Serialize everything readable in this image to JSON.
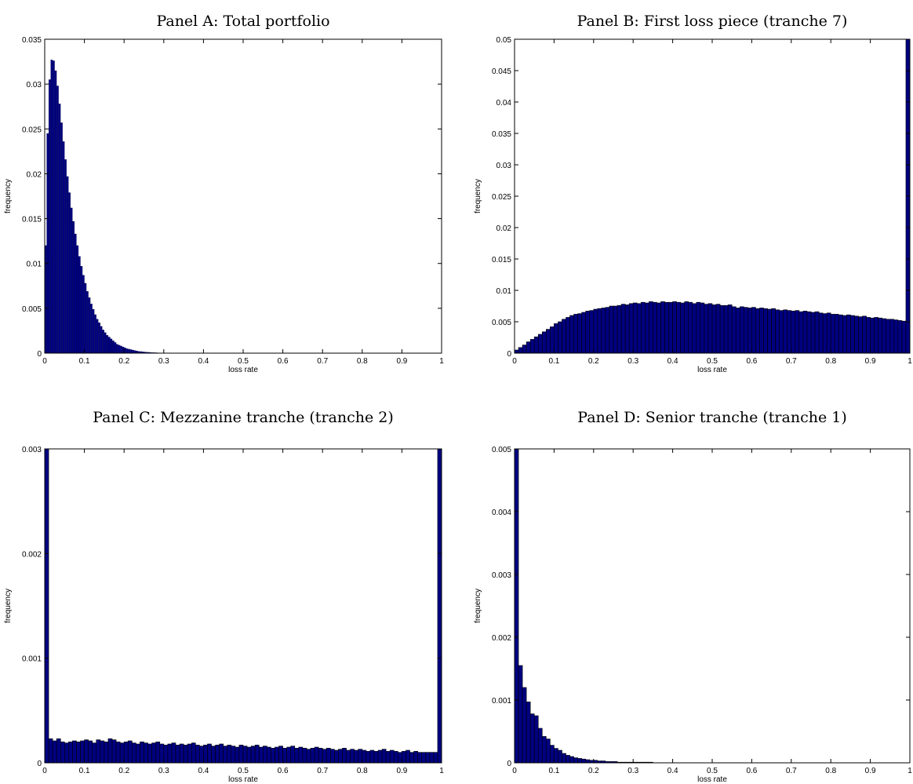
{
  "colors": {
    "bar_fill": "#000080",
    "bar_edge": "#000000",
    "axes": "#000000",
    "background": "#ffffff"
  },
  "chart_data": [
    {
      "id": "A",
      "type": "bar",
      "title": "Panel A: Total portfolio",
      "xlabel": "loss rate",
      "ylabel": "frequency",
      "xlim": [
        0,
        1
      ],
      "ylim": [
        0,
        0.035
      ],
      "xticks": [
        "0",
        "0.1",
        "0.2",
        "0.3",
        "0.4",
        "0.5",
        "0.6",
        "0.7",
        "0.8",
        "0.9",
        "1"
      ],
      "yticks": [
        "0",
        "0.005",
        "0.01",
        "0.015",
        "0.02",
        "0.025",
        "0.03",
        "0.035"
      ],
      "bar_width": 0.005,
      "x": [
        0.0025,
        0.0075,
        0.0125,
        0.0175,
        0.0225,
        0.0275,
        0.0325,
        0.0375,
        0.0425,
        0.0475,
        0.0525,
        0.0575,
        0.0625,
        0.0675,
        0.0725,
        0.0775,
        0.0825,
        0.0875,
        0.0925,
        0.0975,
        0.1025,
        0.1075,
        0.1125,
        0.1175,
        0.1225,
        0.1275,
        0.1325,
        0.1375,
        0.1425,
        0.1475,
        0.1525,
        0.1575,
        0.1625,
        0.1675,
        0.1725,
        0.1775,
        0.1825,
        0.1875,
        0.1925,
        0.1975,
        0.2025,
        0.2075,
        0.2125,
        0.2175,
        0.2225,
        0.2275,
        0.2325,
        0.2375,
        0.2425,
        0.2475,
        0.2525,
        0.2575,
        0.2625,
        0.2675,
        0.2725,
        0.2775,
        0.2825,
        0.2875,
        0.2925,
        0.2975,
        0.3025,
        0.3075,
        0.3125
      ],
      "values": [
        0.012,
        0.0245,
        0.0305,
        0.0327,
        0.0326,
        0.0315,
        0.0298,
        0.0278,
        0.0257,
        0.0236,
        0.0216,
        0.0197,
        0.0179,
        0.0162,
        0.0147,
        0.0133,
        0.012,
        0.0108,
        0.0097,
        0.0087,
        0.0078,
        0.0069,
        0.0062,
        0.0055,
        0.0049,
        0.0043,
        0.0038,
        0.0034,
        0.003,
        0.0026,
        0.0023,
        0.002,
        0.0018,
        0.0016,
        0.0014,
        0.0012,
        0.001,
        0.0009,
        0.0008,
        0.0007,
        0.0006,
        0.0005,
        0.00045,
        0.0004,
        0.00035,
        0.0003,
        0.00025,
        0.0002,
        0.00018,
        0.00015,
        0.00013,
        0.00011,
        0.0001,
        8e-05,
        7e-05,
        6e-05,
        5e-05,
        4e-05,
        3e-05,
        3e-05,
        2e-05,
        2e-05,
        1e-05
      ]
    },
    {
      "id": "B",
      "type": "bar",
      "title": "Panel B: First loss piece (tranche 7)",
      "xlabel": "loss rate",
      "ylabel": "frequency",
      "xlim": [
        0,
        1
      ],
      "ylim": [
        0,
        0.05
      ],
      "xticks": [
        "0",
        "0.1",
        "0.2",
        "0.3",
        "0.4",
        "0.5",
        "0.6",
        "0.7",
        "0.8",
        "0.9",
        "1"
      ],
      "yticks": [
        "0",
        "0.005",
        "0.01",
        "0.015",
        "0.02",
        "0.025",
        "0.03",
        "0.035",
        "0.04",
        "0.045",
        "0.05"
      ],
      "bar_width": 0.01,
      "x": [
        0.005,
        0.015,
        0.025,
        0.035,
        0.045,
        0.055,
        0.065,
        0.075,
        0.085,
        0.095,
        0.105,
        0.115,
        0.125,
        0.135,
        0.145,
        0.155,
        0.165,
        0.175,
        0.185,
        0.195,
        0.205,
        0.215,
        0.225,
        0.235,
        0.245,
        0.255,
        0.265,
        0.275,
        0.285,
        0.295,
        0.305,
        0.315,
        0.325,
        0.335,
        0.345,
        0.355,
        0.365,
        0.375,
        0.385,
        0.395,
        0.405,
        0.415,
        0.425,
        0.435,
        0.445,
        0.455,
        0.465,
        0.475,
        0.485,
        0.495,
        0.505,
        0.515,
        0.525,
        0.535,
        0.545,
        0.555,
        0.565,
        0.575,
        0.585,
        0.595,
        0.605,
        0.615,
        0.625,
        0.635,
        0.645,
        0.655,
        0.665,
        0.675,
        0.685,
        0.695,
        0.705,
        0.715,
        0.725,
        0.735,
        0.745,
        0.755,
        0.765,
        0.775,
        0.785,
        0.795,
        0.805,
        0.815,
        0.825,
        0.835,
        0.845,
        0.855,
        0.865,
        0.875,
        0.885,
        0.895,
        0.905,
        0.915,
        0.925,
        0.935,
        0.945,
        0.955,
        0.965,
        0.975,
        0.985,
        0.995
      ],
      "values": [
        0.0005,
        0.0009,
        0.0013,
        0.0018,
        0.0022,
        0.0026,
        0.003,
        0.0034,
        0.0038,
        0.0042,
        0.0047,
        0.005,
        0.0054,
        0.0057,
        0.006,
        0.0062,
        0.0063,
        0.0065,
        0.0067,
        0.0068,
        0.007,
        0.0071,
        0.0072,
        0.0073,
        0.0075,
        0.0075,
        0.0076,
        0.0078,
        0.0077,
        0.0079,
        0.008,
        0.0079,
        0.0081,
        0.008,
        0.0082,
        0.0081,
        0.008,
        0.0082,
        0.0081,
        0.0081,
        0.0082,
        0.0081,
        0.008,
        0.0082,
        0.0081,
        0.0079,
        0.0081,
        0.008,
        0.0078,
        0.0079,
        0.0077,
        0.0078,
        0.0076,
        0.0076,
        0.0077,
        0.0074,
        0.0072,
        0.0074,
        0.0073,
        0.0072,
        0.0073,
        0.0071,
        0.0072,
        0.0071,
        0.007,
        0.0071,
        0.0069,
        0.0068,
        0.0069,
        0.0068,
        0.0067,
        0.0068,
        0.0066,
        0.0067,
        0.0066,
        0.0065,
        0.0066,
        0.0064,
        0.0063,
        0.0064,
        0.0062,
        0.0062,
        0.0061,
        0.006,
        0.0061,
        0.006,
        0.0059,
        0.0058,
        0.0059,
        0.0057,
        0.0056,
        0.0057,
        0.0056,
        0.0055,
        0.0054,
        0.0054,
        0.0053,
        0.0052,
        0.0051,
        0.05
      ]
    },
    {
      "id": "C",
      "type": "bar",
      "title": "Panel C: Mezzanine tranche (tranche 2)",
      "xlabel": "loss rate",
      "ylabel": "frequency",
      "xlim": [
        0,
        1
      ],
      "ylim": [
        0,
        0.003
      ],
      "xticks": [
        "0",
        "0.1",
        "0.2",
        "0.3",
        "0.4",
        "0.5",
        "0.6",
        "0.7",
        "0.8",
        "0.9",
        "1"
      ],
      "yticks": [
        "0",
        "0.001",
        "0.002",
        "0.003"
      ],
      "bar_width": 0.01,
      "x": [
        0.005,
        0.015,
        0.025,
        0.035,
        0.045,
        0.055,
        0.065,
        0.075,
        0.085,
        0.095,
        0.105,
        0.115,
        0.125,
        0.135,
        0.145,
        0.155,
        0.165,
        0.175,
        0.185,
        0.195,
        0.205,
        0.215,
        0.225,
        0.235,
        0.245,
        0.255,
        0.265,
        0.275,
        0.285,
        0.295,
        0.305,
        0.315,
        0.325,
        0.335,
        0.345,
        0.355,
        0.365,
        0.375,
        0.385,
        0.395,
        0.405,
        0.415,
        0.425,
        0.435,
        0.445,
        0.455,
        0.465,
        0.475,
        0.485,
        0.495,
        0.505,
        0.515,
        0.525,
        0.535,
        0.545,
        0.555,
        0.565,
        0.575,
        0.585,
        0.595,
        0.605,
        0.615,
        0.625,
        0.635,
        0.645,
        0.655,
        0.665,
        0.675,
        0.685,
        0.695,
        0.705,
        0.715,
        0.725,
        0.735,
        0.745,
        0.755,
        0.765,
        0.775,
        0.785,
        0.795,
        0.805,
        0.815,
        0.825,
        0.835,
        0.845,
        0.855,
        0.865,
        0.875,
        0.885,
        0.895,
        0.905,
        0.915,
        0.925,
        0.935,
        0.945,
        0.955,
        0.965,
        0.975,
        0.985,
        0.995
      ],
      "values": [
        0.003,
        0.00023,
        0.00021,
        0.00023,
        0.0002,
        0.00019,
        0.0002,
        0.00021,
        0.0002,
        0.00021,
        0.00022,
        0.00021,
        0.00019,
        0.00022,
        0.00021,
        0.0002,
        0.00023,
        0.00022,
        0.0002,
        0.00019,
        0.0002,
        0.00021,
        0.00019,
        0.00018,
        0.0002,
        0.00019,
        0.00018,
        0.00019,
        0.0002,
        0.00018,
        0.00017,
        0.00018,
        0.00019,
        0.00017,
        0.00018,
        0.00017,
        0.00018,
        0.00019,
        0.00017,
        0.00016,
        0.00017,
        0.00018,
        0.00016,
        0.00017,
        0.00018,
        0.00016,
        0.00017,
        0.00016,
        0.00015,
        0.00017,
        0.00016,
        0.00015,
        0.00016,
        0.00017,
        0.00015,
        0.00016,
        0.00015,
        0.00014,
        0.00015,
        0.00016,
        0.00014,
        0.00015,
        0.00016,
        0.00014,
        0.00015,
        0.00014,
        0.00013,
        0.00014,
        0.00015,
        0.00014,
        0.00013,
        0.00014,
        0.00013,
        0.00012,
        0.00013,
        0.00014,
        0.00012,
        0.00013,
        0.00012,
        0.00013,
        0.00012,
        0.00011,
        0.00012,
        0.00011,
        0.00012,
        0.00013,
        0.00011,
        0.00012,
        0.00011,
        0.0001,
        0.00011,
        0.00012,
        0.0001,
        0.00011,
        0.0001,
        0.0001,
        0.0001,
        0.0001,
        0.0001,
        0.003
      ]
    },
    {
      "id": "D",
      "type": "bar",
      "title": "Panel D: Senior tranche (tranche 1)",
      "xlabel": "loss rate",
      "ylabel": "frequency",
      "xlim": [
        0,
        1
      ],
      "ylim": [
        0,
        0.005
      ],
      "xticks": [
        "0",
        "0.1",
        "0.2",
        "0.3",
        "0.4",
        "0.5",
        "0.6",
        "0.7",
        "0.8",
        "0.9",
        "1"
      ],
      "yticks": [
        "0",
        "0.001",
        "0.002",
        "0.003",
        "0.004",
        "0.005"
      ],
      "bar_width": 0.01,
      "x": [
        0.005,
        0.015,
        0.025,
        0.035,
        0.045,
        0.055,
        0.065,
        0.075,
        0.085,
        0.095,
        0.105,
        0.115,
        0.125,
        0.135,
        0.145,
        0.155,
        0.165,
        0.175,
        0.185,
        0.195,
        0.205,
        0.215,
        0.225,
        0.235,
        0.245,
        0.255,
        0.265,
        0.275,
        0.285,
        0.295,
        0.305,
        0.315,
        0.325,
        0.335,
        0.345
      ],
      "values": [
        0.005,
        0.00155,
        0.0012,
        0.00097,
        0.00078,
        0.00075,
        0.00055,
        0.00042,
        0.00038,
        0.00028,
        0.00023,
        0.0002,
        0.00015,
        0.00012,
        0.0001,
        8e-05,
        7e-05,
        6e-05,
        5e-05,
        4e-05,
        4e-05,
        3e-05,
        3e-05,
        2e-05,
        2e-05,
        2e-05,
        1e-05,
        1e-05,
        1e-05,
        1e-05,
        1e-05,
        1e-05,
        1e-05,
        1e-05,
        1e-05
      ]
    }
  ]
}
